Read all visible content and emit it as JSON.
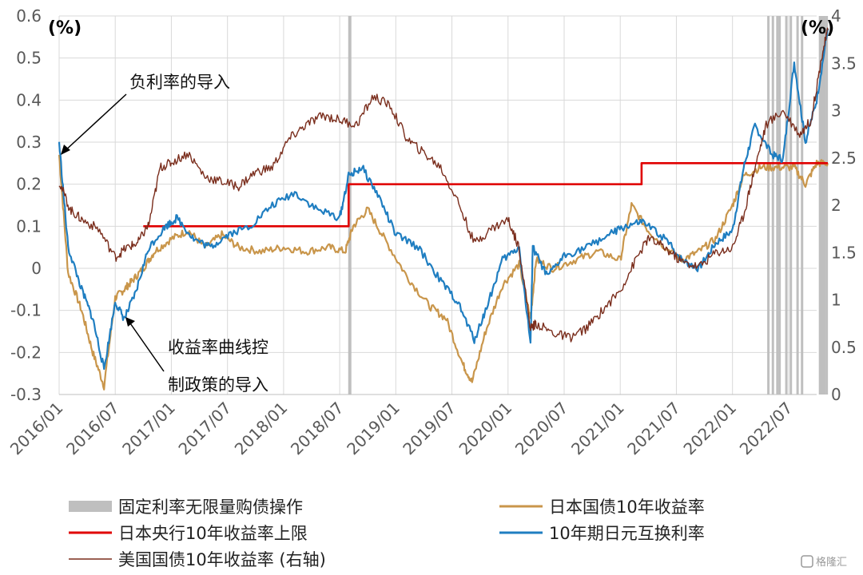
{
  "chart_data": {
    "type": "line",
    "left_unit": "(%)",
    "right_unit": "(%)",
    "y_left": {
      "ticks": [
        "0.6",
        "0.5",
        "0.4",
        "0.3",
        "0.2",
        "0.1",
        "0",
        "-0.1",
        "-0.2",
        "-0.3"
      ],
      "range": [
        -0.3,
        0.6
      ]
    },
    "y_right": {
      "ticks": [
        "4",
        "3.5",
        "3",
        "2.5",
        "2",
        "1.5",
        "1",
        "0.5",
        "0"
      ],
      "range": [
        0,
        4
      ]
    },
    "x_ticks": [
      "2016/01",
      "2016/07",
      "2017/01",
      "2017/07",
      "2018/01",
      "2018/07",
      "2019/01",
      "2019/07",
      "2020/01",
      "2020/07",
      "2021/01",
      "2021/07",
      "2022/01",
      "2022/07"
    ],
    "x_range": [
      "2016/01",
      "2022/10"
    ],
    "annotations": {
      "neg_rate": "负利率的导入",
      "ycc_line1": "收益率曲线控",
      "ycc_line2": "制政策的导入"
    },
    "legend": [
      {
        "key": "fixed_rate",
        "label": "固定利率无限量购债操作",
        "color": "#bfbfbf"
      },
      {
        "key": "jgb",
        "label": "日本国债10年收益率",
        "color": "#c9964b"
      },
      {
        "key": "boj_cap",
        "label": "日本央行10年收益率上限",
        "color": "#e00000"
      },
      {
        "key": "swap",
        "label": "10年期日元互换利率",
        "color": "#1f7ec1"
      },
      {
        "key": "ust",
        "label": "美国国债10年收益率 (右轴)",
        "color": "#7a2d1c"
      }
    ],
    "series": [
      {
        "name": "日本国债10年收益率",
        "axis": "left",
        "color": "#c9964b",
        "x": [
          2016.0,
          2016.08,
          2016.2,
          2016.3,
          2016.4,
          2016.5,
          2016.58,
          2016.65,
          2016.75,
          2016.85,
          2017.0,
          2017.15,
          2017.3,
          2017.45,
          2017.6,
          2017.8,
          2018.0,
          2018.2,
          2018.4,
          2018.55,
          2018.62,
          2018.75,
          2018.9,
          2019.1,
          2019.3,
          2019.45,
          2019.6,
          2019.68,
          2019.8,
          2019.95,
          2020.1,
          2020.2,
          2020.25,
          2020.4,
          2020.6,
          2020.8,
          2021.0,
          2021.1,
          2021.25,
          2021.4,
          2021.55,
          2021.7,
          2021.85,
          2022.0,
          2022.1,
          2022.25,
          2022.4,
          2022.55,
          2022.65,
          2022.75,
          2022.85
        ],
        "y": [
          0.27,
          -0.01,
          -0.1,
          -0.2,
          -0.28,
          -0.07,
          -0.05,
          -0.03,
          0,
          0.04,
          0.07,
          0.09,
          0.05,
          0.08,
          0.05,
          0.04,
          0.05,
          0.04,
          0.05,
          0.04,
          0.1,
          0.14,
          0.07,
          -0.02,
          -0.09,
          -0.12,
          -0.23,
          -0.27,
          -0.15,
          -0.04,
          0.01,
          -0.12,
          0.02,
          0,
          0.02,
          0.04,
          0.02,
          0.15,
          0.09,
          0.05,
          0.02,
          0.04,
          0.07,
          0.15,
          0.22,
          0.24,
          0.24,
          0.24,
          0.2,
          0.25,
          0.25
        ]
      },
      {
        "name": "日本央行10年收益率上限",
        "axis": "left",
        "color": "#e00000",
        "x": [
          2016.75,
          2018.58,
          2018.58,
          2021.19,
          2021.19,
          2022.85
        ],
        "y": [
          0.1,
          0.1,
          0.2,
          0.2,
          0.25,
          0.25
        ]
      },
      {
        "name": "10年期日元互换利率",
        "axis": "left",
        "color": "#1f7ec1",
        "x": [
          2016.0,
          2016.08,
          2016.2,
          2016.3,
          2016.4,
          2016.5,
          2016.58,
          2016.68,
          2016.8,
          2016.95,
          2017.05,
          2017.2,
          2017.35,
          2017.5,
          2017.7,
          2017.9,
          2018.1,
          2018.3,
          2018.5,
          2018.58,
          2018.7,
          2018.85,
          2019.0,
          2019.2,
          2019.4,
          2019.55,
          2019.7,
          2019.8,
          2019.95,
          2020.1,
          2020.2,
          2020.22,
          2020.35,
          2020.5,
          2020.7,
          2020.9,
          2021.05,
          2021.2,
          2021.4,
          2021.55,
          2021.7,
          2021.85,
          2022.0,
          2022.1,
          2022.2,
          2022.35,
          2022.45,
          2022.55,
          2022.65,
          2022.75,
          2022.85
        ],
        "y": [
          0.3,
          0.05,
          -0.05,
          -0.12,
          -0.24,
          -0.08,
          -0.12,
          -0.06,
          0.05,
          0.1,
          0.12,
          0.07,
          0.05,
          0.08,
          0.1,
          0.15,
          0.18,
          0.14,
          0.12,
          0.22,
          0.24,
          0.17,
          0.08,
          0.05,
          -0.03,
          -0.08,
          -0.17,
          -0.1,
          0.02,
          0.05,
          -0.18,
          0.05,
          -0.02,
          0.03,
          0.05,
          0.08,
          0.1,
          0.11,
          0.07,
          0.02,
          0,
          0.06,
          0.09,
          0.24,
          0.34,
          0.27,
          0.26,
          0.49,
          0.3,
          0.4,
          0.57
        ]
      },
      {
        "name": "美国国债10年收益率 (右轴)",
        "axis": "right",
        "color": "#7a2d1c",
        "x": [
          2016.0,
          2016.1,
          2016.2,
          2016.35,
          2016.5,
          2016.6,
          2016.7,
          2016.8,
          2016.9,
          2017.0,
          2017.15,
          2017.3,
          2017.45,
          2017.6,
          2017.75,
          2017.9,
          2018.05,
          2018.2,
          2018.35,
          2018.5,
          2018.65,
          2018.8,
          2018.95,
          2019.1,
          2019.25,
          2019.4,
          2019.55,
          2019.7,
          2019.85,
          2020.0,
          2020.1,
          2020.2,
          2020.25,
          2020.4,
          2020.55,
          2020.7,
          2020.85,
          2021.0,
          2021.15,
          2021.25,
          2021.4,
          2021.55,
          2021.7,
          2021.85,
          2022.0,
          2022.1,
          2022.2,
          2022.3,
          2022.45,
          2022.6,
          2022.7,
          2022.8,
          2022.85
        ],
        "y": [
          2.25,
          1.95,
          1.85,
          1.75,
          1.45,
          1.55,
          1.6,
          1.8,
          2.4,
          2.45,
          2.55,
          2.3,
          2.25,
          2.2,
          2.35,
          2.4,
          2.7,
          2.85,
          2.95,
          2.9,
          2.85,
          3.15,
          3.05,
          2.7,
          2.55,
          2.4,
          2.05,
          1.6,
          1.75,
          1.85,
          1.55,
          0.7,
          0.75,
          0.65,
          0.6,
          0.7,
          0.9,
          1.1,
          1.45,
          1.65,
          1.55,
          1.4,
          1.35,
          1.5,
          1.55,
          1.9,
          2.4,
          2.85,
          3.0,
          2.75,
          2.9,
          3.6,
          3.85
        ]
      }
    ],
    "shaded_periods": [
      2018.59,
      2022.32,
      2022.36,
      2022.4,
      2022.42,
      2022.48,
      2022.52,
      2022.58,
      2022.62,
      2022.78,
      2022.8,
      2022.82,
      2022.84
    ],
    "grid": true,
    "legend_position": "bottom"
  },
  "watermark": "格隆汇"
}
